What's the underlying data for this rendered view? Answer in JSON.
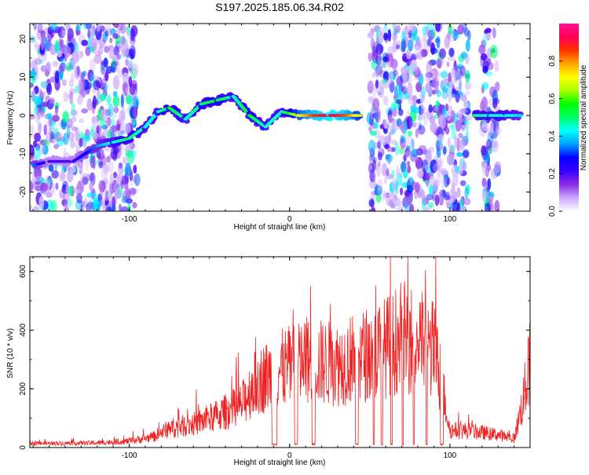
{
  "title": "S197.2025.185.06.34.R02",
  "chart_data": [
    {
      "type": "heatmap",
      "xlabel": "Height of straight line (km)",
      "ylabel": "Frequency (Hz)",
      "xlim": [
        -162,
        150
      ],
      "ylim": [
        -25,
        24
      ],
      "xticks": [
        -100,
        0,
        100
      ],
      "yticks": [
        -20,
        -10,
        0,
        10,
        20
      ],
      "colorbar": {
        "label": "Normalized spectral amplitude",
        "range": [
          0,
          1
        ],
        "ticks": [
          "0.0",
          "0.2",
          "0.4",
          "0.6",
          "0.8"
        ],
        "colormap": [
          "#ffffff",
          "#c9a8ff",
          "#8a2be2",
          "#3b00ff",
          "#0000ff",
          "#00a0ff",
          "#00ffff",
          "#00ff66",
          "#00ff00",
          "#aaff00",
          "#ffff00",
          "#ffa500",
          "#ff3300",
          "#ff0055",
          "#ff1493"
        ]
      },
      "ridge": [
        {
          "x": -160,
          "y": -13,
          "a": 0.35
        },
        {
          "x": -150,
          "y": -12,
          "a": 0.2
        },
        {
          "x": -135,
          "y": -12,
          "a": 0.2
        },
        {
          "x": -120,
          "y": -8,
          "a": 0.35
        },
        {
          "x": -110,
          "y": -7,
          "a": 0.45
        },
        {
          "x": -100,
          "y": -6,
          "a": 0.5
        },
        {
          "x": -90,
          "y": -3,
          "a": 0.45
        },
        {
          "x": -82,
          "y": 1,
          "a": 0.45
        },
        {
          "x": -75,
          "y": 2,
          "a": 0.55
        },
        {
          "x": -65,
          "y": -1,
          "a": 0.45
        },
        {
          "x": -55,
          "y": 3,
          "a": 0.5
        },
        {
          "x": -45,
          "y": 4,
          "a": 0.55
        },
        {
          "x": -35,
          "y": 5,
          "a": 0.45
        },
        {
          "x": -25,
          "y": 0,
          "a": 0.55
        },
        {
          "x": -15,
          "y": -3,
          "a": 0.45
        },
        {
          "x": -5,
          "y": 1,
          "a": 0.45
        },
        {
          "x": 5,
          "y": 0,
          "a": 0.7
        },
        {
          "x": 15,
          "y": 0,
          "a": 0.85
        },
        {
          "x": 25,
          "y": 0,
          "a": 0.95
        },
        {
          "x": 35,
          "y": 0,
          "a": 0.85
        },
        {
          "x": 45,
          "y": 0,
          "a": 0.65
        },
        {
          "x": 115,
          "y": 0,
          "a": 0.5
        },
        {
          "x": 125,
          "y": 0,
          "a": 0.45
        },
        {
          "x": 135,
          "y": 0,
          "a": 0.45
        },
        {
          "x": 145,
          "y": 0,
          "a": 0.4
        }
      ],
      "noise_bands": [
        [
          -162,
          -95
        ],
        [
          50,
          112
        ],
        [
          120,
          130
        ]
      ]
    },
    {
      "type": "line",
      "xlabel": "Height of straight line (km)",
      "ylabel": "SNR (10 * v/v)",
      "xlim": [
        -162,
        150
      ],
      "ylim": [
        0,
        650
      ],
      "xticks": [
        -100,
        0,
        100
      ],
      "yticks": [
        0,
        200,
        400,
        600
      ],
      "color": "#ee2222",
      "envelope": {
        "x": [
          -162,
          -140,
          -120,
          -100,
          -85,
          -75,
          -60,
          -45,
          -30,
          -22,
          -15,
          -8,
          0,
          10,
          20,
          30,
          40,
          50,
          60,
          70,
          80,
          90,
          95,
          100,
          110,
          120,
          130,
          140,
          145,
          150
        ],
        "y": [
          20,
          20,
          22,
          30,
          50,
          90,
          110,
          150,
          200,
          300,
          330,
          360,
          380,
          400,
          400,
          390,
          420,
          440,
          470,
          520,
          500,
          460,
          300,
          80,
          80,
          70,
          60,
          40,
          200,
          400
        ]
      },
      "gaps": [
        [
          -11,
          -8
        ],
        [
          3,
          5
        ],
        [
          14,
          16
        ],
        [
          41,
          43
        ],
        [
          52,
          53
        ],
        [
          57,
          58
        ],
        [
          63,
          64
        ],
        [
          70,
          71
        ],
        [
          77,
          78
        ],
        [
          85,
          86
        ],
        [
          94,
          96
        ]
      ],
      "gap_level": 8
    }
  ]
}
